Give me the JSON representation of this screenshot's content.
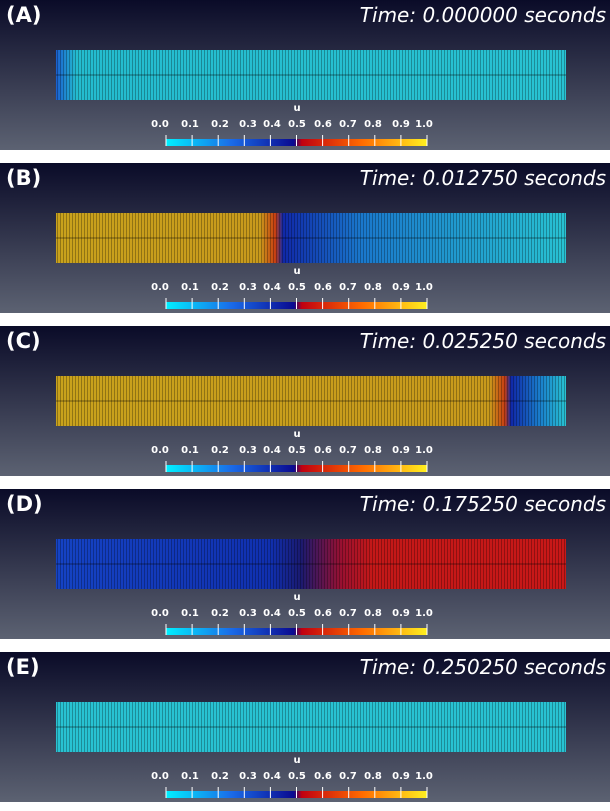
{
  "panels": [
    {
      "label": "(A)",
      "time": "Time: 0.000000 seconds",
      "colorbar_title": "u",
      "colorbar_ticks": [
        "0.0",
        "0.1",
        "0.2",
        "0.3",
        "0.4",
        "0.5",
        "0.6",
        "0.7",
        "0.8",
        "0.9",
        "1.0"
      ]
    },
    {
      "label": "(B)",
      "time": "Time: 0.012750 seconds",
      "colorbar_title": "u",
      "colorbar_ticks": [
        "0.0",
        "0.1",
        "0.2",
        "0.3",
        "0.4",
        "0.5",
        "0.6",
        "0.7",
        "0.8",
        "0.9",
        "1.0"
      ]
    },
    {
      "label": "(C)",
      "time": "Time: 0.025250 seconds",
      "colorbar_title": "u",
      "colorbar_ticks": [
        "0.0",
        "0.1",
        "0.2",
        "0.3",
        "0.4",
        "0.5",
        "0.6",
        "0.7",
        "0.8",
        "0.9",
        "1.0"
      ]
    },
    {
      "label": "(D)",
      "time": "Time: 0.175250 seconds",
      "colorbar_title": "u",
      "colorbar_ticks": [
        "0.0",
        "0.1",
        "0.2",
        "0.3",
        "0.4",
        "0.5",
        "0.6",
        "0.7",
        "0.8",
        "0.9",
        "1.0"
      ]
    },
    {
      "label": "(E)",
      "time": "Time: 0.250250 seconds",
      "colorbar_title": "u",
      "colorbar_ticks": [
        "0.0",
        "0.1",
        "0.2",
        "0.3",
        "0.4",
        "0.5",
        "0.6",
        "0.7",
        "0.8",
        "0.9",
        "1.0"
      ]
    }
  ]
}
